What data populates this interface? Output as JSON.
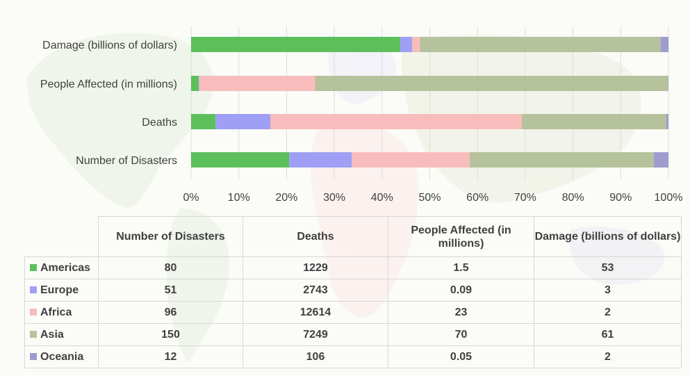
{
  "chart_data": {
    "type": "bar",
    "orientation": "horizontal",
    "stacked": "percent",
    "categories": [
      "Damage (billions of dollars)",
      "People Affected (in millions)",
      "Deaths",
      "Number of Disasters"
    ],
    "series": [
      {
        "name": "Americas",
        "color": "#5cbf5c",
        "values": [
          53,
          1.5,
          1229,
          80
        ]
      },
      {
        "name": "Europe",
        "color": "#9f9ff5",
        "values": [
          3,
          0.09,
          2743,
          51
        ]
      },
      {
        "name": "Africa",
        "color": "#f8bcbc",
        "values": [
          2,
          23,
          12614,
          96
        ]
      },
      {
        "name": "Asia",
        "color": "#b6c29b",
        "values": [
          61,
          70,
          7249,
          150
        ]
      },
      {
        "name": "Oceania",
        "color": "#9d9ccc",
        "values": [
          2,
          0.05,
          106,
          12
        ]
      }
    ],
    "x_ticks": [
      "0%",
      "10%",
      "20%",
      "30%",
      "40%",
      "50%",
      "60%",
      "70%",
      "80%",
      "90%",
      "100%"
    ],
    "xlim": [
      0,
      100
    ],
    "grid": true,
    "legend": "table below chart"
  },
  "table": {
    "headers": [
      "Number of Disasters",
      "Deaths",
      "People Affected (in millions)",
      "Damage (billions of dollars)"
    ],
    "rows": [
      {
        "label": "Americas",
        "color": "#5cbf5c",
        "cells": [
          "80",
          "1229",
          "1.5",
          "53"
        ]
      },
      {
        "label": "Europe",
        "color": "#9f9ff5",
        "cells": [
          "51",
          "2743",
          "0.09",
          "3"
        ]
      },
      {
        "label": "Africa",
        "color": "#f8bcbc",
        "cells": [
          "96",
          "12614",
          "23",
          "2"
        ]
      },
      {
        "label": "Asia",
        "color": "#b6c29b",
        "cells": [
          "150",
          "7249",
          "70",
          "61"
        ]
      },
      {
        "label": "Oceania",
        "color": "#9d9ccc",
        "cells": [
          "12",
          "106",
          "0.05",
          "2"
        ]
      }
    ]
  }
}
